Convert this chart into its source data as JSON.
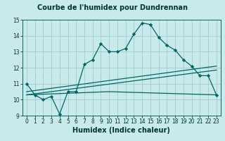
{
  "title": "Courbe de l'humidex pour Dundrennan",
  "xlabel": "Humidex (Indice chaleur)",
  "xlim": [
    -0.5,
    23.5
  ],
  "ylim": [
    9,
    15
  ],
  "bg_color": "#c8eaea",
  "grid_color": "#a0cccc",
  "line_color": "#006666",
  "xticks": [
    0,
    1,
    2,
    3,
    4,
    5,
    6,
    7,
    8,
    9,
    10,
    11,
    12,
    13,
    14,
    15,
    16,
    17,
    18,
    19,
    20,
    21,
    22,
    23
  ],
  "yticks": [
    9,
    10,
    11,
    12,
    13,
    14,
    15
  ],
  "series1_x": [
    0,
    1,
    2,
    3,
    4,
    5,
    6,
    7,
    8,
    9,
    10,
    11,
    12,
    13,
    14,
    15,
    16,
    17,
    18,
    19,
    20,
    21,
    22,
    23
  ],
  "series1_y": [
    11.0,
    10.3,
    10.0,
    10.2,
    9.1,
    10.5,
    10.5,
    12.2,
    12.5,
    13.5,
    13.0,
    13.0,
    13.2,
    14.1,
    14.8,
    14.7,
    13.9,
    13.4,
    13.1,
    12.5,
    12.1,
    11.5,
    11.5,
    10.3
  ],
  "series2_x": [
    0,
    23
  ],
  "series2_y": [
    10.5,
    12.1
  ],
  "series3_x": [
    0,
    23
  ],
  "series3_y": [
    10.3,
    11.85
  ],
  "series4_x": [
    0,
    10,
    23
  ],
  "series4_y": [
    10.3,
    10.5,
    10.3
  ],
  "title_fontsize": 7,
  "xlabel_fontsize": 7,
  "tick_fontsize": 5.5
}
